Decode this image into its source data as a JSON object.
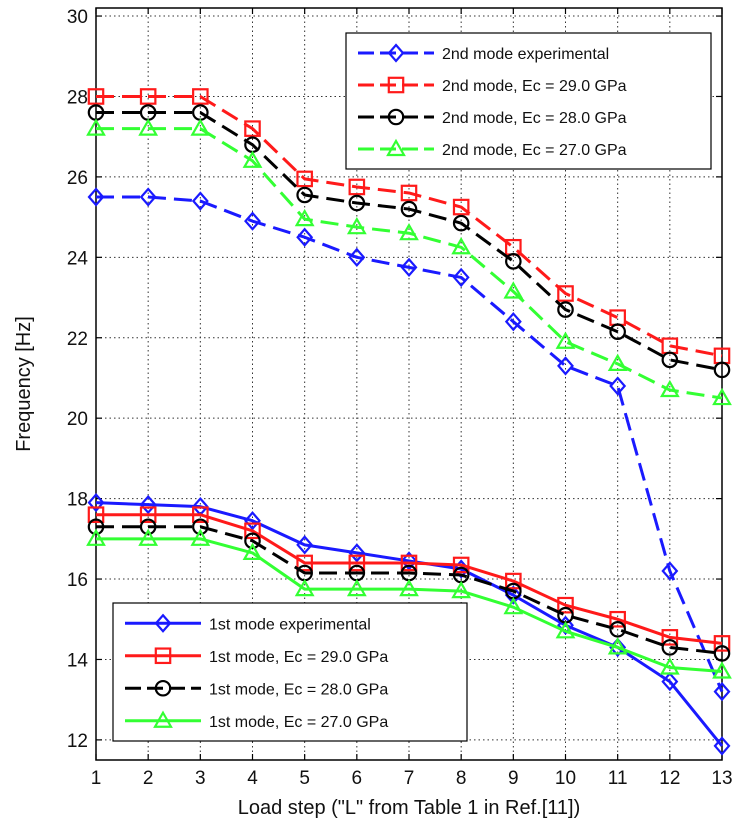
{
  "chart_data": {
    "type": "line",
    "title": "",
    "xlabel": "Load step (\"L\" from Table 1 in Ref.[11])",
    "ylabel": "Frequency [Hz]",
    "xlim": [
      1,
      13
    ],
    "ylim": [
      11.5,
      30.2
    ],
    "x": [
      1,
      2,
      3,
      4,
      5,
      6,
      7,
      8,
      9,
      10,
      11,
      12,
      13
    ],
    "x_ticks": [
      "1",
      "2",
      "3",
      "4",
      "5",
      "6",
      "7",
      "8",
      "9",
      "10",
      "11",
      "12",
      "13"
    ],
    "y_ticks": [
      "12",
      "14",
      "16",
      "18",
      "20",
      "22",
      "24",
      "26",
      "28",
      "30"
    ],
    "grid": true,
    "legends": [
      {
        "placement": "top-right",
        "entries": [
          0,
          1,
          2,
          3
        ]
      },
      {
        "placement": "bottom-left",
        "entries": [
          4,
          5,
          6,
          7
        ]
      }
    ],
    "series": [
      {
        "name": "2nd mode experimental",
        "color": "#1a1aff",
        "marker": "diamond",
        "line": "dashed",
        "values": [
          25.5,
          25.5,
          25.4,
          24.9,
          24.5,
          24.0,
          23.75,
          23.5,
          22.4,
          21.3,
          20.8,
          16.2,
          13.2
        ]
      },
      {
        "name": "2nd mode, Ec = 29.0 GPa",
        "color": "#ff1a1a",
        "marker": "square",
        "line": "dashed",
        "values": [
          28.0,
          28.0,
          28.0,
          27.2,
          25.95,
          25.75,
          25.6,
          25.25,
          24.25,
          23.1,
          22.5,
          21.8,
          21.55
        ]
      },
      {
        "name": "2nd mode, Ec = 28.0 GPa",
        "color": "#000000",
        "marker": "circle",
        "line": "dashed",
        "values": [
          27.6,
          27.6,
          27.6,
          26.8,
          25.55,
          25.35,
          25.2,
          24.85,
          23.9,
          22.7,
          22.15,
          21.45,
          21.2
        ]
      },
      {
        "name": "2nd mode, Ec = 27.0 GPa",
        "color": "#33ff33",
        "marker": "triangle",
        "line": "dashed",
        "values": [
          27.2,
          27.2,
          27.2,
          26.4,
          24.95,
          24.75,
          24.6,
          24.25,
          23.15,
          21.9,
          21.35,
          20.7,
          20.5
        ]
      },
      {
        "name": "1st mode experimental",
        "color": "#1a1aff",
        "marker": "diamond",
        "line": "solid",
        "values": [
          17.9,
          17.85,
          17.8,
          17.45,
          16.85,
          16.65,
          16.45,
          16.25,
          15.6,
          14.85,
          14.3,
          13.45,
          11.85
        ]
      },
      {
        "name": "1st mode, Ec = 29.0 GPa",
        "color": "#ff1a1a",
        "marker": "square",
        "line": "solid",
        "values": [
          17.6,
          17.6,
          17.6,
          17.2,
          16.4,
          16.4,
          16.4,
          16.35,
          15.95,
          15.35,
          15.0,
          14.55,
          14.4
        ]
      },
      {
        "name": "1st mode, Ec = 28.0 GPa",
        "color": "#000000",
        "marker": "circle",
        "line": "dashed",
        "values": [
          17.3,
          17.3,
          17.3,
          16.95,
          16.15,
          16.15,
          16.15,
          16.1,
          15.7,
          15.1,
          14.75,
          14.3,
          14.15
        ]
      },
      {
        "name": "1st mode, Ec = 27.0 GPa",
        "color": "#33ff33",
        "marker": "triangle",
        "line": "solid",
        "values": [
          17.0,
          17.0,
          17.0,
          16.65,
          15.75,
          15.75,
          15.75,
          15.7,
          15.3,
          14.7,
          14.3,
          13.8,
          13.7
        ]
      }
    ]
  }
}
